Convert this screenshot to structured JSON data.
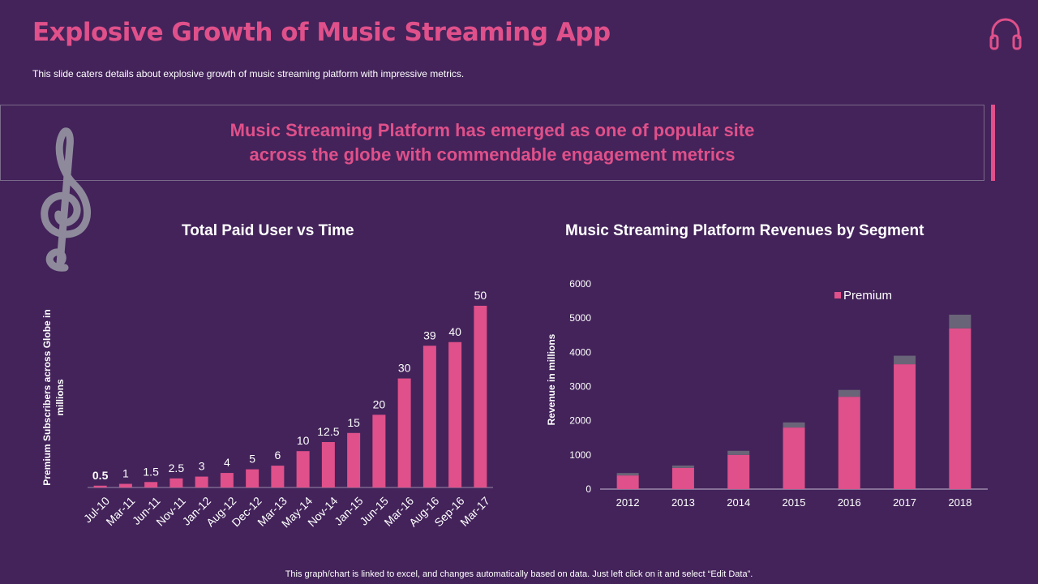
{
  "header": {
    "title": "Explosive Growth of Music Streaming App",
    "subtitle": "This slide caters details about explosive growth of music streaming platform with impressive metrics."
  },
  "banner": {
    "line1": "Music Streaming Platform has emerged as one of popular site",
    "line2": "across the globe with commendable engagement metrics"
  },
  "footer": "This graph/chart is linked to excel, and changes automatically based on data. Just left click on it and select “Edit Data”.",
  "colors": {
    "accent": "#e0508a",
    "background": "#43235a",
    "other_segment": "#6a6478"
  },
  "chart_data": [
    {
      "type": "bar",
      "title": "Total Paid User vs Time",
      "xlabel": "",
      "ylabel": "Premium Subscribers across Globe in millions",
      "categories": [
        "Jul-10",
        "Mar-11",
        "Jun-11",
        "Nov-11",
        "Jan-12",
        "Aug-12",
        "Dec-12",
        "Mar-13",
        "May-14",
        "Nov-14",
        "Jan-15",
        "Jun-15",
        "Mar-16",
        "Aug-16",
        "Sep-16",
        "Mar-17"
      ],
      "values": [
        0.5,
        1,
        1.5,
        2.5,
        3,
        4,
        5,
        6,
        10,
        12.5,
        15,
        20,
        30,
        39,
        40,
        50
      ],
      "labels": [
        "0.5",
        "1",
        "1.5",
        "2.5",
        "3",
        "4",
        "5",
        "6",
        "10",
        "12.5",
        "15",
        "20",
        "30",
        "39",
        "40",
        "50"
      ],
      "ylim": [
        0,
        52
      ],
      "grid": false
    },
    {
      "type": "bar",
      "stacked": true,
      "title": "Music Streaming Platform Revenues by Segment",
      "xlabel": "",
      "ylabel": "Revenue in millions",
      "categories": [
        "2012",
        "2013",
        "2014",
        "2015",
        "2016",
        "2017",
        "2018"
      ],
      "series": [
        {
          "name": "Premium",
          "values": [
            400,
            620,
            1000,
            1800,
            2700,
            3650,
            4700
          ]
        },
        {
          "name": "",
          "values": [
            70,
            70,
            120,
            150,
            200,
            250,
            400
          ]
        }
      ],
      "legend": [
        "Premium"
      ],
      "legend_position": "top-right",
      "yticks": [
        "0",
        "1000",
        "2000",
        "3000",
        "4000",
        "5000",
        "6000"
      ],
      "ylim": [
        0,
        6000
      ],
      "grid": false
    }
  ]
}
